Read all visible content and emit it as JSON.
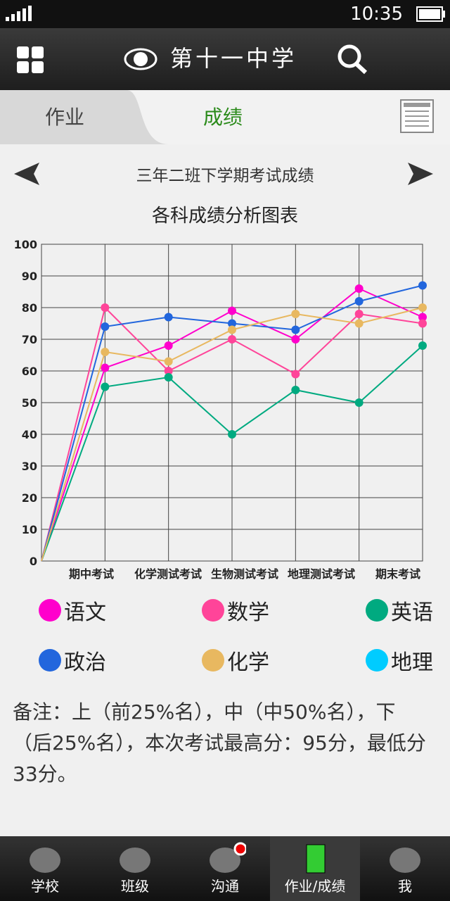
{
  "status_bar": {
    "time": "10:35"
  },
  "header": {
    "title": "第十一中学"
  },
  "tabs": [
    "作业",
    "成绩"
  ],
  "report_title": "三年二班下学期考试成绩",
  "chart_data": {
    "type": "line",
    "title": "各科成绩分析图表",
    "categories": [
      null,
      "期中考试",
      "化学测试考试",
      "生物测试考试",
      "地理测试考试",
      "期末考试",
      null
    ],
    "series": [
      {
        "name": "语文",
        "color": "#ff00cc",
        "values": [
          0,
          61,
          68,
          79,
          70,
          86,
          77
        ]
      },
      {
        "name": "数学",
        "color": "#ff4499",
        "values": [
          0,
          80,
          60,
          70,
          59,
          78,
          75
        ]
      },
      {
        "name": "英语",
        "color": "#00aa80",
        "values": [
          0,
          55,
          58,
          40,
          54,
          50,
          68
        ]
      },
      {
        "name": "政治",
        "color": "#2266dd",
        "values": [
          0,
          74,
          77,
          75,
          73,
          82,
          87
        ]
      },
      {
        "name": "化学",
        "color": "#e8b860",
        "values": [
          0,
          66,
          63,
          73,
          78,
          75,
          80
        ]
      },
      {
        "name": "地理",
        "color": "#00ccff",
        "values": [
          null,
          null,
          null,
          null,
          null,
          null,
          null
        ]
      }
    ],
    "ylim": [
      0,
      100
    ],
    "yticks": [
      0,
      10,
      20,
      30,
      40,
      50,
      60,
      70,
      80,
      90,
      100
    ],
    "grid": true
  },
  "note": "备注：上（前25%名），中（中50%名），下（后25%名），本次考试最高分：95分，最低分33分。",
  "bottom_nav": [
    "学校",
    "班级",
    "沟通",
    "作业/成绩",
    "我"
  ]
}
